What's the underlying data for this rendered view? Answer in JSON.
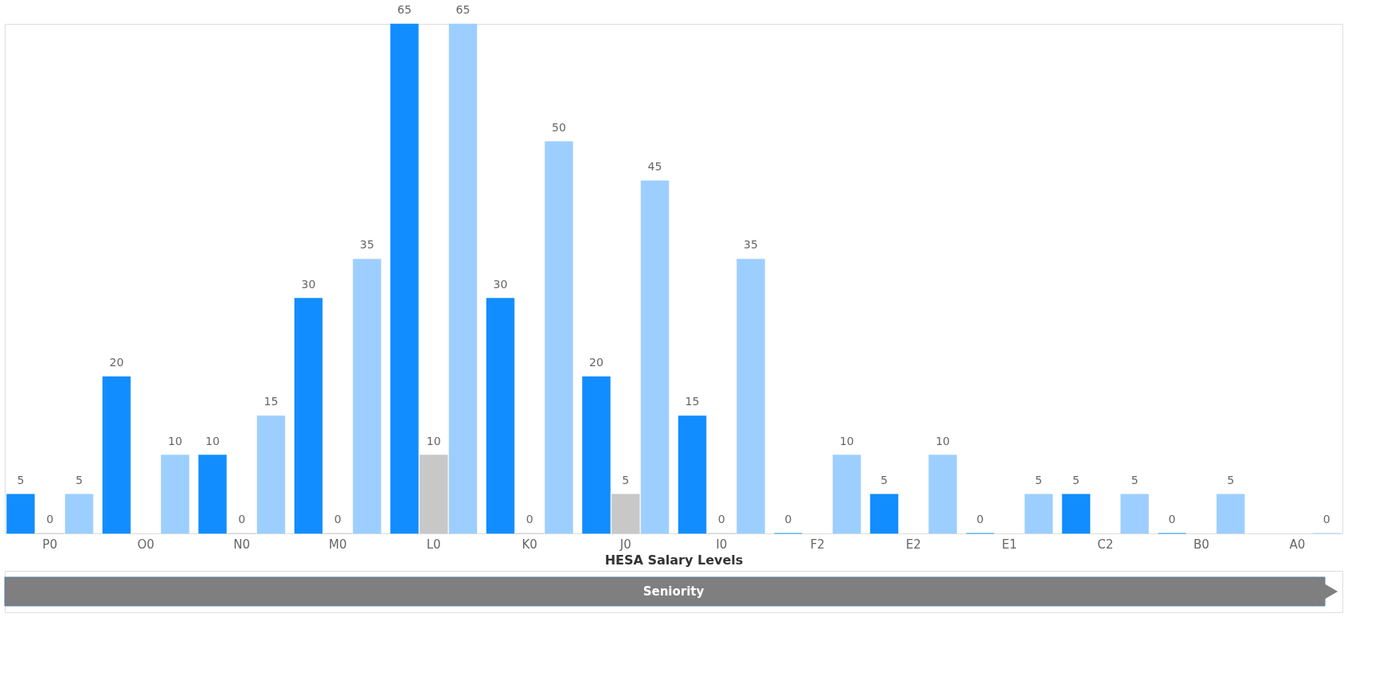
{
  "chart_data": {
    "type": "bar",
    "xlabel": "HESA Salary Levels",
    "categories": [
      "P0",
      "O0",
      "N0",
      "M0",
      "L0",
      "K0",
      "J0",
      "I0",
      "F2",
      "E2",
      "E1",
      "C2",
      "B0",
      "A0"
    ],
    "series": [
      {
        "color": "#118dff",
        "values": [
          5,
          20,
          10,
          30,
          65,
          30,
          20,
          15,
          0,
          5,
          0,
          5,
          0,
          null
        ]
      },
      {
        "color": "#c8c8c8",
        "values": [
          0,
          null,
          0,
          0,
          10,
          0,
          5,
          0,
          null,
          null,
          null,
          null,
          null,
          null
        ]
      },
      {
        "color": "#9ccfff",
        "values": [
          5,
          10,
          15,
          35,
          65,
          50,
          45,
          35,
          10,
          10,
          5,
          5,
          5,
          0
        ]
      }
    ],
    "data_labels": true,
    "legend": false,
    "grid": false,
    "annotations": [
      "Seniority"
    ]
  }
}
